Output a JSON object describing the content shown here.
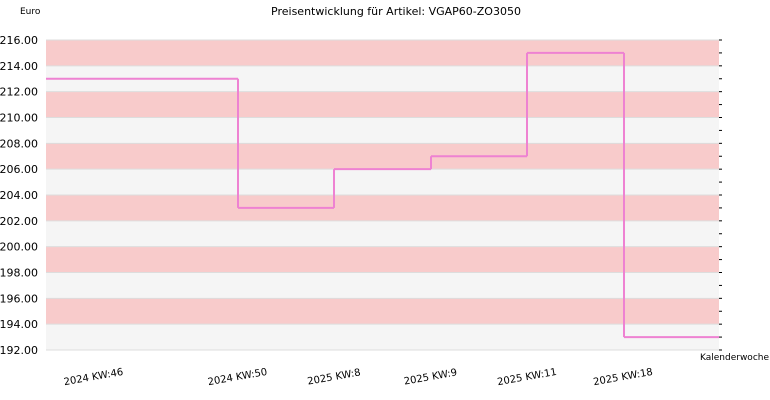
{
  "chart_data": {
    "type": "line",
    "step": true,
    "title": "Preisentwicklung für Artikel: VGAP60-ZO3050",
    "ylabel": "Euro",
    "xlabel": "Kalenderwoche",
    "ylim": [
      192,
      216
    ],
    "ytick_step": 2,
    "yticks": [
      "192.00",
      "194.00",
      "196.00",
      "198.00",
      "200.00",
      "202.00",
      "204.00",
      "206.00",
      "208.00",
      "210.00",
      "212.00",
      "214.00",
      "216.00"
    ],
    "categories": [
      "2024 KW:46",
      "2024 KW:50",
      "2025 KW:8",
      "2025 KW:9",
      "2025 KW:11",
      "2025 KW:18"
    ],
    "series": [
      {
        "values": [
          213,
          203,
          206,
          207,
          215,
          193
        ],
        "color": "#ee82d2"
      }
    ],
    "band_colors": [
      "#f8cbcb",
      "#f5f5f5"
    ],
    "grid": true,
    "legend": "none"
  }
}
